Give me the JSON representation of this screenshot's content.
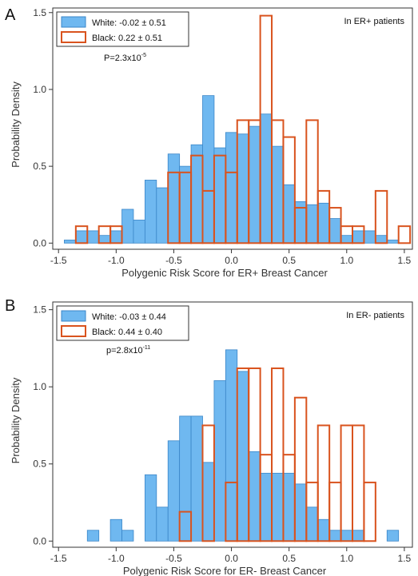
{
  "chart_data": [
    {
      "type": "histogram",
      "panel_label": "A",
      "annotation": "In ER+ patients",
      "p_value": {
        "base": "P=2.3x10",
        "exponent": "-5"
      },
      "xlabel": "Polygenic Risk Score for ER+ Breast Cancer",
      "ylabel": "Probability Density",
      "xlim": [
        -1.55,
        1.57
      ],
      "ylim": [
        -0.04,
        1.53
      ],
      "xticks": [
        "-1.5",
        "-1.0",
        "-0.5",
        "0.0",
        "0.5",
        "1.0",
        "1.5"
      ],
      "yticks": [
        "0.0",
        "0.5",
        "1.0",
        "1.5"
      ],
      "legend_position": "top-left",
      "series": [
        {
          "name": "White: -0.02 ± 0.51",
          "legend_label": "White: -0.02 ± 0.51",
          "style": "filled",
          "fill": "#6fb8f0",
          "stroke": "#3a86c8",
          "bins": [
            {
              "x0": -1.45,
              "x1": -1.35,
              "value": 0.02
            },
            {
              "x0": -1.35,
              "x1": -1.25,
              "value": 0.08
            },
            {
              "x0": -1.25,
              "x1": -1.15,
              "value": 0.08
            },
            {
              "x0": -1.15,
              "x1": -1.05,
              "value": 0.05
            },
            {
              "x0": -1.05,
              "x1": -0.95,
              "value": 0.08
            },
            {
              "x0": -0.95,
              "x1": -0.85,
              "value": 0.22
            },
            {
              "x0": -0.85,
              "x1": -0.75,
              "value": 0.15
            },
            {
              "x0": -0.75,
              "x1": -0.65,
              "value": 0.41
            },
            {
              "x0": -0.65,
              "x1": -0.55,
              "value": 0.36
            },
            {
              "x0": -0.55,
              "x1": -0.45,
              "value": 0.58
            },
            {
              "x0": -0.45,
              "x1": -0.35,
              "value": 0.5
            },
            {
              "x0": -0.35,
              "x1": -0.25,
              "value": 0.64
            },
            {
              "x0": -0.25,
              "x1": -0.15,
              "value": 0.96
            },
            {
              "x0": -0.15,
              "x1": -0.05,
              "value": 0.62
            },
            {
              "x0": -0.05,
              "x1": 0.05,
              "value": 0.72
            },
            {
              "x0": 0.05,
              "x1": 0.15,
              "value": 0.71
            },
            {
              "x0": 0.15,
              "x1": 0.25,
              "value": 0.76
            },
            {
              "x0": 0.25,
              "x1": 0.35,
              "value": 0.84
            },
            {
              "x0": 0.35,
              "x1": 0.45,
              "value": 0.63
            },
            {
              "x0": 0.45,
              "x1": 0.55,
              "value": 0.38
            },
            {
              "x0": 0.55,
              "x1": 0.65,
              "value": 0.27
            },
            {
              "x0": 0.65,
              "x1": 0.75,
              "value": 0.25
            },
            {
              "x0": 0.75,
              "x1": 0.85,
              "value": 0.26
            },
            {
              "x0": 0.85,
              "x1": 0.95,
              "value": 0.16
            },
            {
              "x0": 0.95,
              "x1": 1.05,
              "value": 0.05
            },
            {
              "x0": 1.05,
              "x1": 1.15,
              "value": 0.08
            },
            {
              "x0": 1.15,
              "x1": 1.25,
              "value": 0.08
            },
            {
              "x0": 1.25,
              "x1": 1.35,
              "value": 0.05
            },
            {
              "x0": 1.35,
              "x1": 1.45,
              "value": 0.02
            }
          ]
        },
        {
          "name": "Black:  0.22 ± 0.51",
          "legend_label": "Black:  0.22 ± 0.51",
          "style": "outline",
          "stroke": "#d9531e",
          "bins": [
            {
              "x0": -1.35,
              "x1": -1.25,
              "value": 0.11
            },
            {
              "x0": -1.15,
              "x1": -1.05,
              "value": 0.11
            },
            {
              "x0": -1.05,
              "x1": -0.95,
              "value": 0.11
            },
            {
              "x0": -0.55,
              "x1": -0.45,
              "value": 0.46
            },
            {
              "x0": -0.45,
              "x1": -0.35,
              "value": 0.46
            },
            {
              "x0": -0.35,
              "x1": -0.25,
              "value": 0.57
            },
            {
              "x0": -0.25,
              "x1": -0.15,
              "value": 0.34
            },
            {
              "x0": -0.15,
              "x1": -0.05,
              "value": 0.57
            },
            {
              "x0": -0.05,
              "x1": 0.05,
              "value": 0.46
            },
            {
              "x0": 0.05,
              "x1": 0.15,
              "value": 0.8
            },
            {
              "x0": 0.15,
              "x1": 0.25,
              "value": 0.8
            },
            {
              "x0": 0.25,
              "x1": 0.35,
              "value": 1.48
            },
            {
              "x0": 0.35,
              "x1": 0.45,
              "value": 0.8
            },
            {
              "x0": 0.45,
              "x1": 0.55,
              "value": 0.69
            },
            {
              "x0": 0.55,
              "x1": 0.65,
              "value": 0.23
            },
            {
              "x0": 0.65,
              "x1": 0.75,
              "value": 0.8
            },
            {
              "x0": 0.75,
              "x1": 0.85,
              "value": 0.34
            },
            {
              "x0": 0.85,
              "x1": 0.95,
              "value": 0.23
            },
            {
              "x0": 0.95,
              "x1": 1.05,
              "value": 0.11
            },
            {
              "x0": 1.05,
              "x1": 1.15,
              "value": 0.11
            },
            {
              "x0": 1.25,
              "x1": 1.35,
              "value": 0.34
            },
            {
              "x0": 1.45,
              "x1": 1.55,
              "value": 0.11
            }
          ]
        }
      ]
    },
    {
      "type": "histogram",
      "panel_label": "B",
      "annotation": "In ER- patients",
      "p_value": {
        "base": "p=2.8x10",
        "exponent": "-11"
      },
      "xlabel": "Polygenic Risk Score for ER- Breast Cancer",
      "ylabel": "Probability Density",
      "xlim": [
        -1.55,
        1.57
      ],
      "ylim": [
        -0.04,
        1.55
      ],
      "xticks": [
        "-1.5",
        "-1.0",
        "-0.5",
        "0.0",
        "0.5",
        "1.0",
        "1.5"
      ],
      "yticks": [
        "0.0",
        "0.5",
        "1.0",
        "1.5"
      ],
      "legend_position": "top-left",
      "series": [
        {
          "name": "White: -0.03 ± 0.44",
          "legend_label": "White: -0.03 ± 0.44",
          "style": "filled",
          "fill": "#6fb8f0",
          "stroke": "#3a86c8",
          "bins": [
            {
              "x0": -1.25,
              "x1": -1.15,
              "value": 0.07
            },
            {
              "x0": -1.05,
              "x1": -0.95,
              "value": 0.14
            },
            {
              "x0": -0.95,
              "x1": -0.85,
              "value": 0.07
            },
            {
              "x0": -0.75,
              "x1": -0.65,
              "value": 0.43
            },
            {
              "x0": -0.65,
              "x1": -0.55,
              "value": 0.22
            },
            {
              "x0": -0.55,
              "x1": -0.45,
              "value": 0.65
            },
            {
              "x0": -0.45,
              "x1": -0.35,
              "value": 0.81
            },
            {
              "x0": -0.35,
              "x1": -0.25,
              "value": 0.81
            },
            {
              "x0": -0.25,
              "x1": -0.15,
              "value": 0.51
            },
            {
              "x0": -0.15,
              "x1": -0.05,
              "value": 1.04
            },
            {
              "x0": -0.05,
              "x1": 0.05,
              "value": 1.24
            },
            {
              "x0": 0.05,
              "x1": 0.15,
              "value": 1.1
            },
            {
              "x0": 0.15,
              "x1": 0.25,
              "value": 0.58
            },
            {
              "x0": 0.25,
              "x1": 0.35,
              "value": 0.44
            },
            {
              "x0": 0.35,
              "x1": 0.45,
              "value": 0.44
            },
            {
              "x0": 0.45,
              "x1": 0.55,
              "value": 0.44
            },
            {
              "x0": 0.55,
              "x1": 0.65,
              "value": 0.37
            },
            {
              "x0": 0.65,
              "x1": 0.75,
              "value": 0.22
            },
            {
              "x0": 0.75,
              "x1": 0.85,
              "value": 0.14
            },
            {
              "x0": 0.85,
              "x1": 0.95,
              "value": 0.07
            },
            {
              "x0": 0.95,
              "x1": 1.05,
              "value": 0.07
            },
            {
              "x0": 1.05,
              "x1": 1.15,
              "value": 0.07
            },
            {
              "x0": 1.35,
              "x1": 1.45,
              "value": 0.07
            }
          ]
        },
        {
          "name": "Black:  0.44 ± 0.40",
          "legend_label": "Black:  0.44 ± 0.40",
          "style": "outline",
          "stroke": "#d9531e",
          "bins": [
            {
              "x0": -0.45,
              "x1": -0.35,
              "value": 0.19
            },
            {
              "x0": -0.25,
              "x1": -0.15,
              "value": 0.75
            },
            {
              "x0": -0.05,
              "x1": 0.05,
              "value": 0.38
            },
            {
              "x0": 0.05,
              "x1": 0.15,
              "value": 1.12
            },
            {
              "x0": 0.15,
              "x1": 0.25,
              "value": 1.12
            },
            {
              "x0": 0.25,
              "x1": 0.35,
              "value": 0.56
            },
            {
              "x0": 0.35,
              "x1": 0.45,
              "value": 1.12
            },
            {
              "x0": 0.45,
              "x1": 0.55,
              "value": 0.56
            },
            {
              "x0": 0.55,
              "x1": 0.65,
              "value": 0.93
            },
            {
              "x0": 0.65,
              "x1": 0.75,
              "value": 0.38
            },
            {
              "x0": 0.75,
              "x1": 0.85,
              "value": 0.75
            },
            {
              "x0": 0.85,
              "x1": 0.95,
              "value": 0.38
            },
            {
              "x0": 0.95,
              "x1": 1.05,
              "value": 0.75
            },
            {
              "x0": 1.05,
              "x1": 1.15,
              "value": 0.75
            },
            {
              "x0": 1.15,
              "x1": 1.25,
              "value": 0.38
            }
          ]
        }
      ]
    }
  ]
}
